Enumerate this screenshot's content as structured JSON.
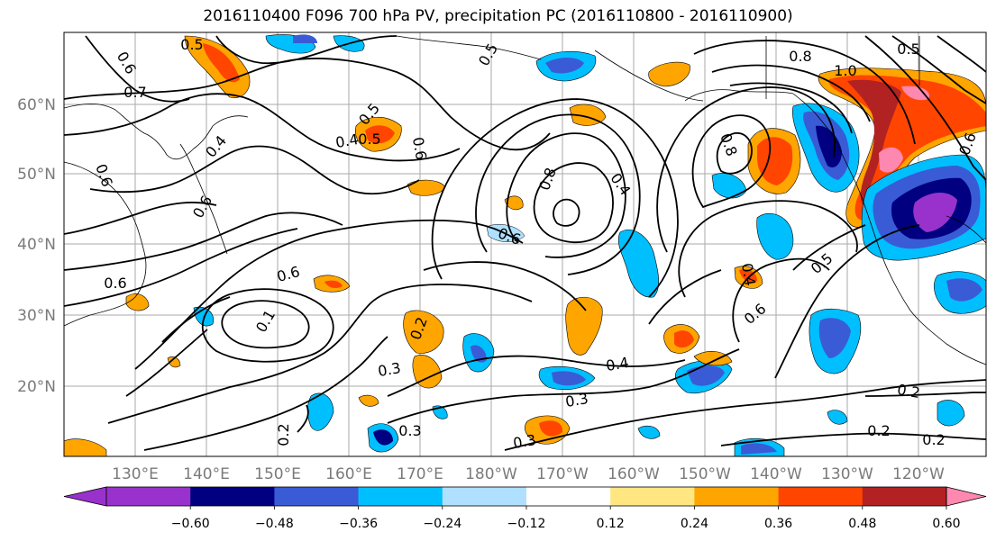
{
  "title": "2016110400 F096 700 hPa PV, precipitation PC (2016110800 - 2016110900)",
  "map": {
    "lon_labels": [
      "130°E",
      "140°E",
      "150°E",
      "160°E",
      "170°E",
      "180°W",
      "170°W",
      "160°W",
      "150°W",
      "140°W",
      "130°W",
      "120°W"
    ],
    "lat_labels": [
      "60°N",
      "50°N",
      "40°N",
      "30°N",
      "20°N"
    ]
  },
  "contour_labels": [
    "0.5",
    "0.6",
    "0.7",
    "0.6",
    "0.4",
    "0.5",
    "0.5",
    "0.6",
    "0.5",
    "0.6",
    "0.8",
    "0.4",
    "0.8",
    "0.6",
    "0.4",
    "0.8",
    "1.0",
    "0.5",
    "0.6",
    "0.4",
    "0.6",
    "0.5",
    "0.6",
    "0.2",
    "0.3",
    "0.4",
    "0.3",
    "0.3",
    "0.2",
    "0.2",
    "0.2",
    "0.3",
    "0.2",
    "0.1",
    "0.6"
  ],
  "colorbar": {
    "colors": [
      "#9932cc",
      "#000080",
      "#3a5bd6",
      "#00bfff",
      "#b0e0ff",
      "#ffffff",
      "#ffe680",
      "#ffa500",
      "#ff4500",
      "#b22222",
      "#ff88b0"
    ],
    "tick_labels": [
      "−0.60",
      "−0.48",
      "−0.36",
      "−0.24",
      "−0.12",
      "0.12",
      "0.24",
      "0.36",
      "0.48",
      "0.60"
    ]
  }
}
